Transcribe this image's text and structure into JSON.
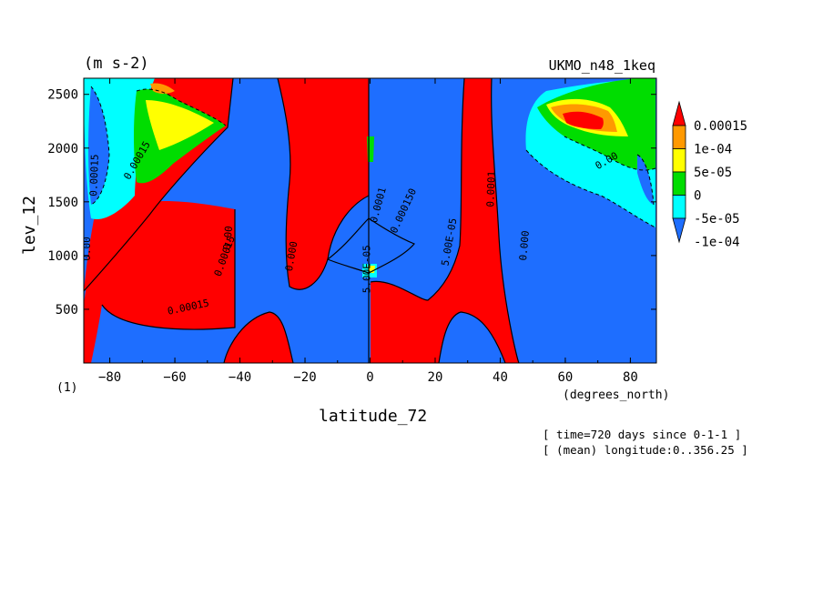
{
  "chart_data": {
    "type": "heatmap",
    "units_label": "(m s-2)",
    "dataset_label": "UKMO_n48_1keq",
    "xlabel": "latitude_72",
    "xunits": "(degrees_north)",
    "ylabel": "lev_12",
    "panel_label": "(1)",
    "xlim": [
      -88,
      88
    ],
    "ylim": [
      0,
      2650
    ],
    "xticks": [
      -80,
      -60,
      -40,
      -20,
      0,
      20,
      40,
      60,
      80
    ],
    "yticks": [
      500,
      1000,
      1500,
      2000,
      2500
    ],
    "info_lines": [
      "[ time=720 days since 0-1-1 ]",
      "[ (mean) longitude:0..356.25 ]"
    ],
    "legend": {
      "levels": [
        "0.00015",
        "1e-04",
        "5e-05",
        "0",
        "-5e-05",
        "-1e-04"
      ],
      "colors": [
        "#ff0000",
        "#ff9900",
        "#ffff00",
        "#00dd00",
        "#00ffff",
        "#1e6eff"
      ]
    },
    "contour_labels": [
      {
        "text": "0.00015",
        "x": -62,
        "y": 450,
        "angle": -12
      },
      {
        "text": "0.00015",
        "x": -46,
        "y": 800,
        "angle": -70
      },
      {
        "text": "0.00",
        "x": -43,
        "y": 1050,
        "angle": -85
      },
      {
        "text": "0.00",
        "x": -86,
        "y": 950,
        "angle": -90
      },
      {
        "text": "0.00015",
        "x": -84,
        "y": 1550,
        "angle": -88
      },
      {
        "text": "0.00015",
        "x": -74,
        "y": 1700,
        "angle": -60
      },
      {
        "text": "0.000",
        "x": -24,
        "y": 850,
        "angle": -80
      },
      {
        "text": "5.00E-05",
        "x": 0,
        "y": 650,
        "angle": -90
      },
      {
        "text": "0.0001",
        "x": 2,
        "y": 1300,
        "angle": -75
      },
      {
        "text": "0.000150",
        "x": 8,
        "y": 1200,
        "angle": -65
      },
      {
        "text": "5.00E-05",
        "x": 24,
        "y": 900,
        "angle": -80
      },
      {
        "text": "0.0001",
        "x": 38,
        "y": 1450,
        "angle": -88
      },
      {
        "text": "0.000",
        "x": 48,
        "y": 950,
        "angle": -85
      },
      {
        "text": "0.00",
        "x": 70,
        "y": 1800,
        "angle": -30
      }
    ]
  }
}
